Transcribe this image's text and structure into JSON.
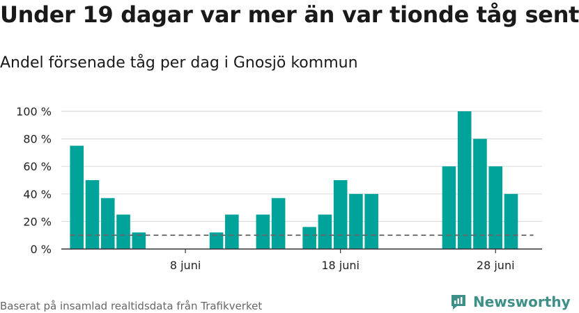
{
  "title": "Under 19 dagar var mer än var tionde tåg sent",
  "subtitle": "Andel försenade tåg per dag i Gnosjö kommun",
  "source": "Baserat på insamlad realtidsdata från Trafikverket",
  "brand": {
    "name": "Newsworthy",
    "icon": "newsworthy-logo-icon",
    "color": "#3d8f87"
  },
  "chart_data": {
    "type": "bar",
    "x_start_day": 1,
    "x_end_day": 30,
    "month": "juni",
    "x_range": [
      0,
      31
    ],
    "days": [
      1,
      2,
      3,
      4,
      5,
      6,
      7,
      8,
      9,
      10,
      11,
      12,
      13,
      14,
      15,
      16,
      17,
      18,
      19,
      20,
      21,
      22,
      23,
      24,
      25,
      26,
      27,
      28,
      29,
      30
    ],
    "values": [
      75,
      50,
      37,
      25,
      12,
      0,
      0,
      0,
      0,
      12,
      25,
      0,
      25,
      37,
      0,
      16,
      25,
      50,
      40,
      40,
      0,
      0,
      0,
      0,
      60,
      100,
      80,
      60,
      40,
      0
    ],
    "ylim": [
      0,
      100
    ],
    "y_ticks": [
      0,
      20,
      40,
      60,
      80,
      100
    ],
    "y_tick_labels": [
      "0 %",
      "20 %",
      "40 %",
      "60 %",
      "80 %",
      "100 %"
    ],
    "x_ticks": [
      8,
      18,
      28
    ],
    "x_tick_labels": [
      "8 juni",
      "18 juni",
      "28 juni"
    ],
    "reference_line": {
      "value": 10,
      "style": "dashed",
      "color": "#666666"
    },
    "bar_color": "#00a39a",
    "grid": true
  }
}
